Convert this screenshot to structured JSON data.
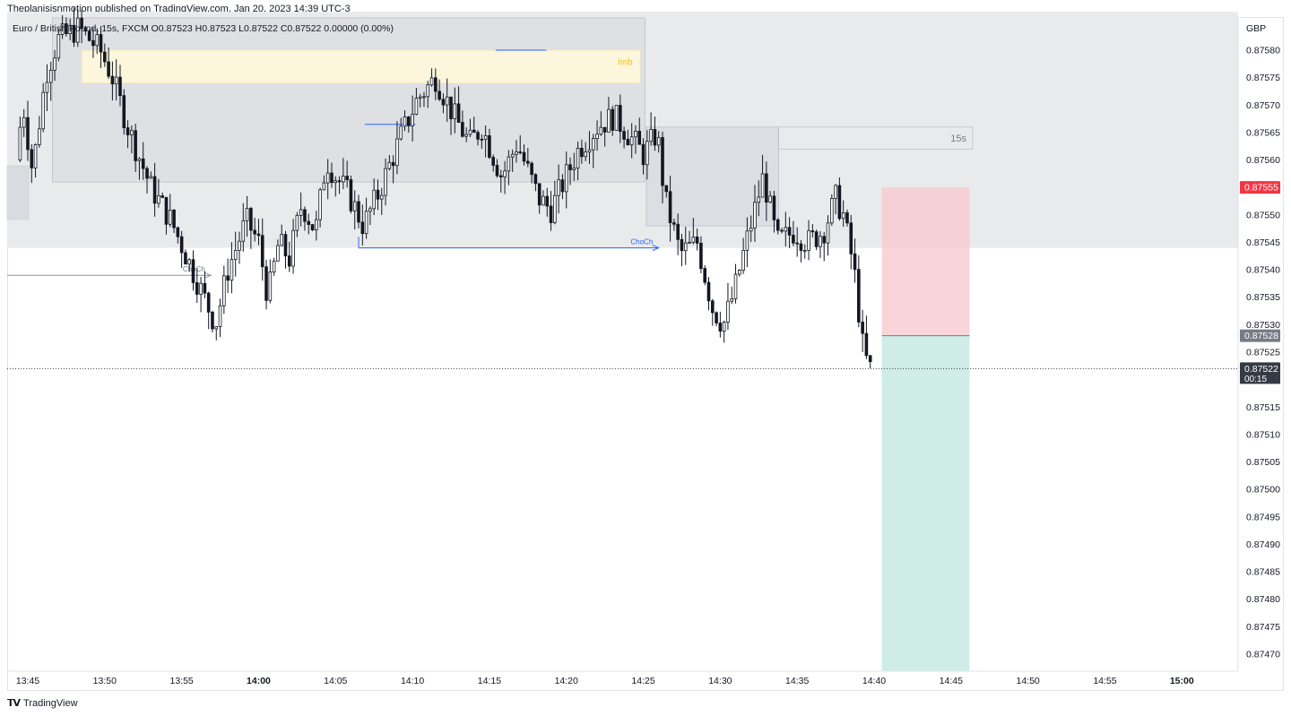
{
  "header": {
    "publish_line": "Theplanisisnmotion published on TradingView.com, Jan 20, 2023 14:39 UTC-3",
    "legend": "Euro / British Pound, 15s, FXCM  O0.87523  H0.87523  L0.87522  C0.87522  0.00000 (0.00%)"
  },
  "footer": {
    "brand": "TradingView",
    "logo": "𝗧𝗩"
  },
  "chart_data": {
    "type": "candlestick",
    "symbol": "Euro / British Pound",
    "interval": "15s",
    "source": "FXCM",
    "currency": "GBP",
    "ohlc": {
      "open": 0.87523,
      "high": 0.87523,
      "low": 0.87522,
      "close": 0.87522,
      "change": "0.00000 (0.00%)"
    },
    "ylim": [
      0.87467,
      0.87587
    ],
    "xlim_minutes": [
      "13:44:30",
      "15:04:00"
    ],
    "y_ticks": [
      "0.87580",
      "0.87575",
      "0.87570",
      "0.87565",
      "0.87560",
      "0.87555",
      "0.87550",
      "0.87545",
      "0.87540",
      "0.87535",
      "0.87530",
      "0.87525",
      "0.87520",
      "0.87515",
      "0.87510",
      "0.87505",
      "0.87500",
      "0.87495",
      "0.87490",
      "0.87485",
      "0.87480",
      "0.87475",
      "0.87470"
    ],
    "x_ticks": [
      "13:45",
      "13:50",
      "13:55",
      "14:00",
      "14:05",
      "14:10",
      "14:15",
      "14:20",
      "14:25",
      "14:30",
      "14:35",
      "14:40",
      "14:45",
      "14:50",
      "14:55",
      "15:00"
    ],
    "bold_x_ticks": [
      "14:00",
      "15:00"
    ],
    "price_labels": [
      {
        "text": "0.87555",
        "value": 0.87555,
        "color": "#f23645"
      },
      {
        "text": "0.87528",
        "value": 0.87528,
        "color": "#787b86"
      },
      {
        "text": "0.87522",
        "sub": "00:15",
        "value": 0.87522,
        "color": "#363a45"
      }
    ],
    "zones": [
      {
        "name": "premium-zone",
        "color": "#e9eaec"
      },
      {
        "name": "supply-box",
        "color": "#d1d4dc"
      },
      {
        "name": "imb-box",
        "label": "Imb",
        "color": "#fbf6dc",
        "label_color": "#f5c518"
      },
      {
        "name": "order-block-15s",
        "label": "15s",
        "color": "#d1d4dc"
      },
      {
        "name": "stop-zone",
        "color": "#f7c9ce"
      },
      {
        "name": "target-zone",
        "color": "#bfe5dd"
      }
    ],
    "choch_labels": [
      {
        "text": "ChoCh",
        "color": "#787b86"
      },
      {
        "text": "ChoCh",
        "color": "#2962ff"
      }
    ],
    "last_price": 0.87522,
    "candles": "synthetic EUR/GBP 15-second series from 13:44:30 to 14:39:45 (price path approx.)"
  }
}
